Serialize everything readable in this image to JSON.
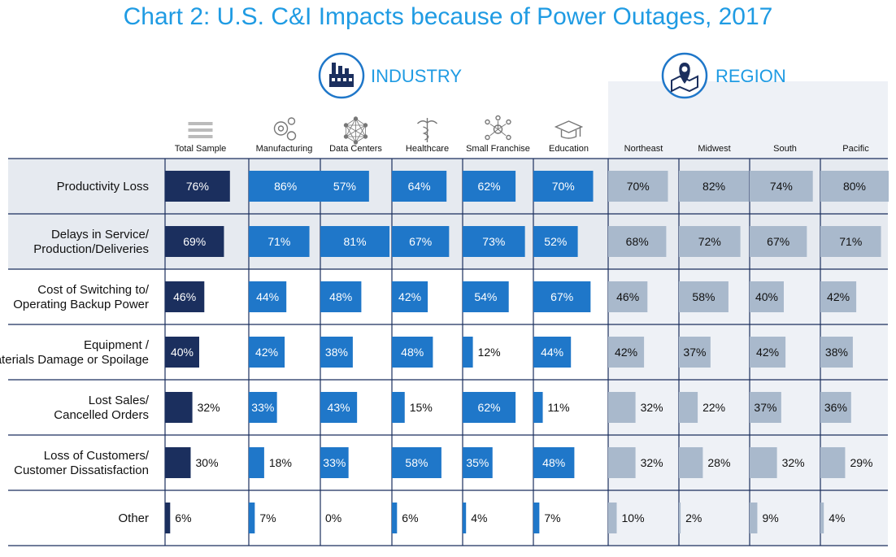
{
  "chart_data": {
    "type": "bar",
    "title": "Chart 2: U.S. C&I Impacts because of Power Outages, 2017",
    "groups": [
      {
        "name": "INDUSTRY",
        "icon": "factory-icon"
      },
      {
        "name": "REGION",
        "icon": "map-pin-icon"
      }
    ],
    "categories": [
      "Productivity Loss",
      "Delays in Service/ Production/Deliveries",
      "Cost of Switching to/ Operating Backup Power",
      "Equipment / Materials Damage or Spoilage",
      "Lost Sales/ Cancelled Orders",
      "Loss of Customers/ Customer Dissatisfaction",
      "Other"
    ],
    "series": [
      {
        "name": "Total Sample",
        "group": "INDUSTRY",
        "icon": "list-icon",
        "color": "#1b2f5e",
        "values": [
          76,
          69,
          46,
          40,
          32,
          30,
          6
        ]
      },
      {
        "name": "Manufacturing",
        "group": "INDUSTRY",
        "icon": "gears-icon",
        "color": "#1f77c9",
        "values": [
          86,
          71,
          44,
          42,
          33,
          18,
          7
        ]
      },
      {
        "name": "Data Centers",
        "group": "INDUSTRY",
        "icon": "network-icon",
        "color": "#1f77c9",
        "values": [
          57,
          81,
          48,
          38,
          43,
          33,
          0
        ]
      },
      {
        "name": "Healthcare",
        "group": "INDUSTRY",
        "icon": "caduceus-icon",
        "color": "#1f77c9",
        "values": [
          64,
          67,
          42,
          48,
          15,
          58,
          6
        ]
      },
      {
        "name": "Small Franchise",
        "group": "INDUSTRY",
        "icon": "franchise-icon",
        "color": "#1f77c9",
        "values": [
          62,
          73,
          54,
          12,
          62,
          35,
          4
        ]
      },
      {
        "name": "Education",
        "group": "INDUSTRY",
        "icon": "graduation-cap-icon",
        "color": "#1f77c9",
        "values": [
          70,
          52,
          67,
          44,
          11,
          48,
          7
        ]
      },
      {
        "name": "Northeast",
        "group": "REGION",
        "color": "#a9b9cc",
        "values": [
          70,
          68,
          46,
          42,
          32,
          32,
          10
        ]
      },
      {
        "name": "Midwest",
        "group": "REGION",
        "color": "#a9b9cc",
        "values": [
          82,
          72,
          58,
          37,
          22,
          28,
          2
        ]
      },
      {
        "name": "South",
        "group": "REGION",
        "color": "#a9b9cc",
        "values": [
          74,
          67,
          40,
          42,
          37,
          32,
          9
        ]
      },
      {
        "name": "Pacific",
        "group": "REGION",
        "color": "#a9b9cc",
        "values": [
          80,
          71,
          42,
          38,
          36,
          29,
          4
        ]
      }
    ],
    "value_suffix": "%",
    "xlim": [
      0,
      100
    ]
  },
  "colors": {
    "accent": "#1f9be3",
    "total": "#1b2f5e",
    "industry": "#1f77c9",
    "region": "#a9b9cc",
    "highlight_row": "#e6eaf0",
    "region_panel": "#eef1f6"
  }
}
